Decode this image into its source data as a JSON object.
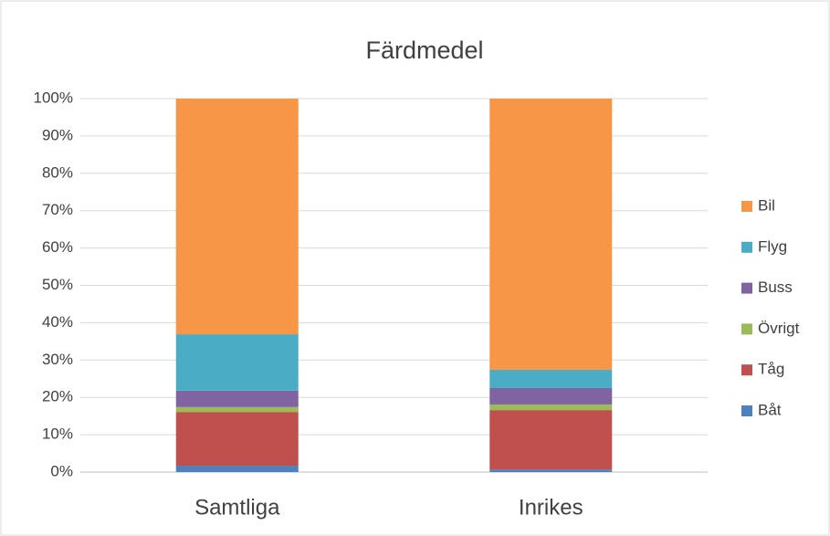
{
  "chart_data": {
    "type": "stacked_bar",
    "title": "Färdmedel",
    "categories": [
      "Samtliga",
      "Inrikes"
    ],
    "series": [
      {
        "name": "Båt",
        "color": "#4f81bd",
        "values": [
          1.7,
          0.7
        ]
      },
      {
        "name": "Tåg",
        "color": "#c0504d",
        "values": [
          14.4,
          15.9
        ]
      },
      {
        "name": "Övrigt",
        "color": "#9bbb59",
        "values": [
          1.3,
          1.5
        ]
      },
      {
        "name": "Buss",
        "color": "#8064a2",
        "values": [
          4.4,
          4.4
        ]
      },
      {
        "name": "Flyg",
        "color": "#4bacc6",
        "values": [
          15.1,
          4.9
        ]
      },
      {
        "name": "Bil",
        "color": "#f79646",
        "values": [
          63.1,
          72.6
        ]
      }
    ],
    "ylim": [
      0,
      100
    ],
    "yticks": [
      {
        "value": 0,
        "label": "0%"
      },
      {
        "value": 10,
        "label": "10%"
      },
      {
        "value": 20,
        "label": "20%"
      },
      {
        "value": 30,
        "label": "30%"
      },
      {
        "value": 40,
        "label": "40%"
      },
      {
        "value": 50,
        "label": "50%"
      },
      {
        "value": 60,
        "label": "60%"
      },
      {
        "value": 70,
        "label": "70%"
      },
      {
        "value": 80,
        "label": "80%"
      },
      {
        "value": 90,
        "label": "90%"
      },
      {
        "value": 100,
        "label": "100%"
      }
    ],
    "grid": true,
    "legend": "right"
  }
}
